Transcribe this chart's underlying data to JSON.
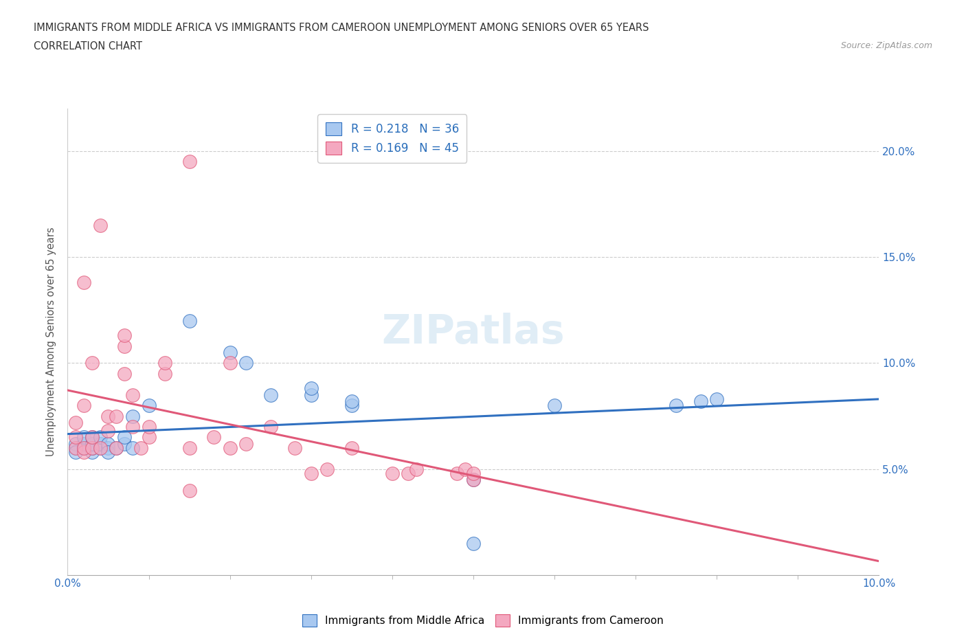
{
  "title_line1": "IMMIGRANTS FROM MIDDLE AFRICA VS IMMIGRANTS FROM CAMEROON UNEMPLOYMENT AMONG SENIORS OVER 65 YEARS",
  "title_line2": "CORRELATION CHART",
  "source_text": "Source: ZipAtlas.com",
  "ylabel": "Unemployment Among Seniors over 65 years",
  "watermark": "ZIPatlas",
  "legend_r1": "R = 0.218",
  "legend_n1": "N = 36",
  "legend_r2": "R = 0.169",
  "legend_n2": "N = 45",
  "color_blue": "#a8c8f0",
  "color_pink": "#f4a8c0",
  "color_blue_line": "#3070c0",
  "color_pink_line": "#e05878",
  "xlim": [
    0.0,
    0.1
  ],
  "ylim": [
    0.0,
    0.22
  ],
  "xtick_minor_positions": [
    0.01,
    0.02,
    0.03,
    0.04,
    0.05,
    0.06,
    0.07,
    0.08,
    0.09
  ],
  "yticks_left": [
    0.05,
    0.1,
    0.15,
    0.2
  ],
  "ytick_right_labels": [
    "5.0%",
    "10.0%",
    "15.0%",
    "20.0%"
  ],
  "blue_x": [
    0.001,
    0.001,
    0.001,
    0.002,
    0.002,
    0.002,
    0.003,
    0.003,
    0.003,
    0.003,
    0.004,
    0.004,
    0.004,
    0.005,
    0.005,
    0.005,
    0.006,
    0.007,
    0.007,
    0.008,
    0.008,
    0.01,
    0.015,
    0.02,
    0.022,
    0.025,
    0.03,
    0.03,
    0.035,
    0.035,
    0.05,
    0.06,
    0.075,
    0.078,
    0.08,
    0.05
  ],
  "blue_y": [
    0.06,
    0.062,
    0.058,
    0.06,
    0.062,
    0.065,
    0.058,
    0.06,
    0.062,
    0.065,
    0.06,
    0.062,
    0.065,
    0.06,
    0.062,
    0.058,
    0.06,
    0.062,
    0.065,
    0.06,
    0.075,
    0.08,
    0.12,
    0.105,
    0.1,
    0.085,
    0.085,
    0.088,
    0.08,
    0.082,
    0.045,
    0.08,
    0.08,
    0.082,
    0.083,
    0.015
  ],
  "pink_x": [
    0.001,
    0.001,
    0.001,
    0.002,
    0.002,
    0.002,
    0.003,
    0.003,
    0.003,
    0.004,
    0.004,
    0.005,
    0.005,
    0.006,
    0.006,
    0.007,
    0.007,
    0.007,
    0.008,
    0.008,
    0.009,
    0.01,
    0.01,
    0.012,
    0.012,
    0.015,
    0.015,
    0.018,
    0.02,
    0.022,
    0.025,
    0.028,
    0.03,
    0.032,
    0.035,
    0.04,
    0.042,
    0.043,
    0.048,
    0.049,
    0.05,
    0.05,
    0.015,
    0.002,
    0.02
  ],
  "pink_y": [
    0.06,
    0.065,
    0.072,
    0.058,
    0.06,
    0.08,
    0.06,
    0.065,
    0.1,
    0.06,
    0.165,
    0.068,
    0.075,
    0.06,
    0.075,
    0.095,
    0.108,
    0.113,
    0.07,
    0.085,
    0.06,
    0.065,
    0.07,
    0.095,
    0.1,
    0.04,
    0.06,
    0.065,
    0.1,
    0.062,
    0.07,
    0.06,
    0.048,
    0.05,
    0.06,
    0.048,
    0.048,
    0.05,
    0.048,
    0.05,
    0.045,
    0.048,
    0.195,
    0.138,
    0.06
  ]
}
